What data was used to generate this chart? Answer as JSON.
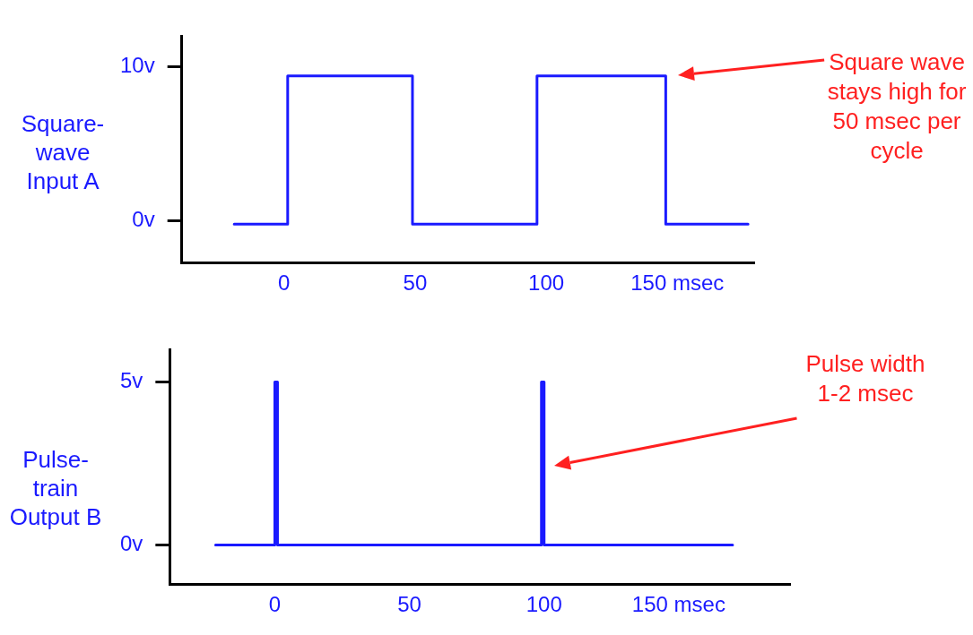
{
  "chart_data": [
    {
      "type": "line",
      "ylabel": "Square-wave Input A",
      "series": [
        {
          "color": "#1a1aff",
          "x": [
            -19,
            1.4,
            1.4,
            49,
            49,
            96.5,
            96.5,
            145.6,
            145.6,
            177
          ],
          "values": [
            -0.2,
            -0.2,
            9.4,
            9.4,
            -0.2,
            -0.2,
            9.4,
            9.4,
            -0.2,
            -0.2
          ]
        }
      ],
      "xlim": [
        -39,
        179
      ],
      "xticks": [
        0,
        50,
        100,
        {
          "value": 150,
          "label": "150 msec"
        }
      ],
      "ylim": [
        -2.7,
        12
      ],
      "yticks": [
        {
          "value": 0,
          "label": "0v"
        },
        {
          "value": 10,
          "label": "10v"
        }
      ],
      "grid": false,
      "legend": false,
      "marker": "none",
      "annotations": [
        "Square wave stays high for 50 msec per cycle"
      ]
    },
    {
      "type": "line",
      "ylabel": "Pulse-train Output B",
      "series": [
        {
          "color": "#1a1aff",
          "x": [
            -22,
            0,
            0,
            1,
            1,
            99,
            99,
            100,
            100,
            170
          ],
          "values": [
            0,
            0,
            5,
            5,
            0,
            0,
            5,
            5,
            0,
            0
          ]
        }
      ],
      "xlim": [
        -39,
        191
      ],
      "xticks": [
        0,
        50,
        100,
        {
          "value": 150,
          "label": "150 msec"
        }
      ],
      "ylim": [
        -1.2,
        6
      ],
      "yticks": [
        {
          "value": 0,
          "label": "0v"
        },
        {
          "value": 5,
          "label": "5v"
        }
      ],
      "grid": false,
      "legend": false,
      "marker": "none",
      "annotations": [
        "Pulse width 1-2 msec"
      ]
    }
  ]
}
